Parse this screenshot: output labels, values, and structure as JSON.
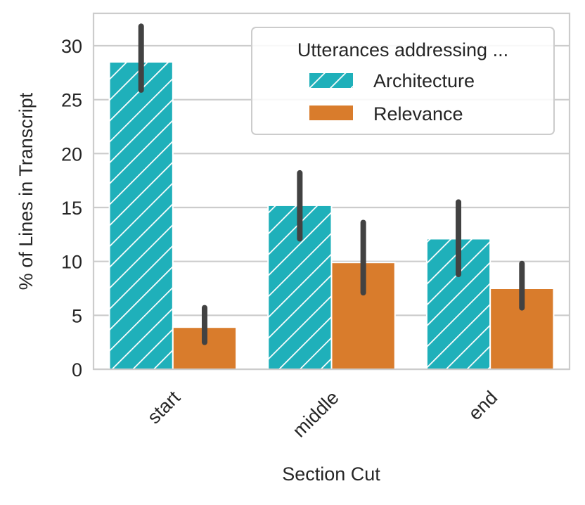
{
  "chart_data": {
    "type": "bar",
    "title": "",
    "xlabel": "Section Cut",
    "ylabel": "% of Lines in Transcript",
    "ylim": [
      0,
      33
    ],
    "yticks": [
      0,
      5,
      10,
      15,
      20,
      25,
      30
    ],
    "categories": [
      "start",
      "middle",
      "end"
    ],
    "grid": true,
    "legend": {
      "title": "Utterances addressing ...",
      "placement": "top-right"
    },
    "series": [
      {
        "name": "Architecture",
        "color": "#1fb0ba",
        "hatch": "diagonal",
        "values": [
          28.5,
          15.2,
          12.1
        ],
        "error_low": [
          25.9,
          12.1,
          8.8
        ],
        "error_high": [
          31.8,
          18.2,
          15.5
        ]
      },
      {
        "name": "Relevance",
        "color": "#d97c2c",
        "hatch": "none",
        "values": [
          3.9,
          9.9,
          7.5
        ],
        "error_low": [
          2.5,
          7.1,
          5.7
        ],
        "error_high": [
          5.7,
          13.6,
          9.8
        ]
      }
    ]
  },
  "colors": {
    "error_bar": "#424242",
    "grid": "#cccccc",
    "axes": "#cccccc",
    "text": "#262626"
  }
}
